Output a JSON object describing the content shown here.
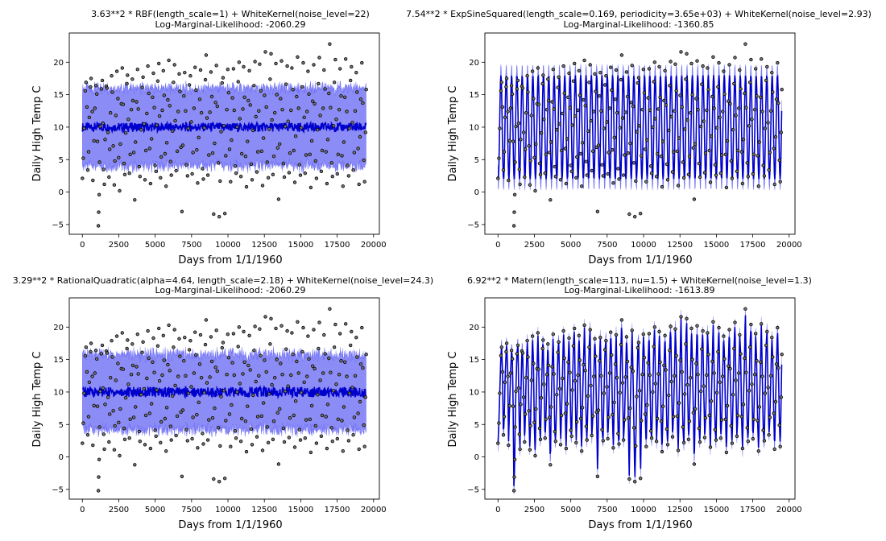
{
  "figure": {
    "background": "#ffffff"
  },
  "chart_data": [
    {
      "type": "line",
      "title_line1": "3.63**2 * RBF(length_scale=1) + WhiteKernel(noise_level=22)",
      "title_line2": "Log-Marginal-Likelihood: -2060.29",
      "xlabel": "Days from 1/1/1960",
      "ylabel": "Daily High Temp C",
      "xlim": [
        -900,
        20400
      ],
      "ylim": [
        -6.5,
        24.5
      ],
      "xticks": [
        0,
        2500,
        5000,
        7500,
        10000,
        12500,
        15000,
        17500,
        20000
      ],
      "yticks": [
        -5,
        0,
        5,
        10,
        15,
        20
      ],
      "grid": false,
      "fit": {
        "model": "flat",
        "mean": 10,
        "mean_noise": 0.7,
        "band_halfwidth": 6,
        "band_noise": 0.1
      },
      "colors": {
        "mean": "#0000cc",
        "band": "#0000ee",
        "points": "#000000"
      },
      "series": [
        {
          "role": "observed",
          "style": "scatter"
        },
        {
          "role": "mean",
          "style": "line"
        },
        {
          "role": "band",
          "style": "area"
        }
      ]
    },
    {
      "type": "line",
      "title_line1": "7.54**2 * ExpSineSquared(length_scale=0.169, periodicity=3.65e+03) + WhiteKernel(noise_level=2.93)",
      "title_line2": "Log-Marginal-Likelihood: -1360.85",
      "xlabel": "Days from 1/1/1960",
      "ylabel": "Daily High Temp C",
      "xlim": [
        -900,
        20400
      ],
      "ylim": [
        -6.5,
        24.5
      ],
      "xticks": [
        0,
        2500,
        5000,
        7500,
        10000,
        12500,
        15000,
        17500,
        20000
      ],
      "yticks": [
        -5,
        0,
        5,
        10,
        15,
        20
      ],
      "grid": false,
      "fit": {
        "model": "seasonal",
        "mean": 10,
        "amplitude": 8,
        "period_days": 365.25,
        "band_halfwidth": 1.7
      },
      "colors": {
        "mean": "#0000cc",
        "band": "#0000ee",
        "points": "#000000"
      },
      "series": [
        {
          "role": "observed",
          "style": "scatter"
        },
        {
          "role": "mean",
          "style": "line"
        },
        {
          "role": "band",
          "style": "area"
        }
      ]
    },
    {
      "type": "line",
      "title_line1": "3.29**2 * RationalQuadratic(alpha=4.64, length_scale=2.18) + WhiteKernel(noise_level=24.3)",
      "title_line2": "Log-Marginal-Likelihood: -2060.29",
      "xlabel": "Days from 1/1/1960",
      "ylabel": "Daily High Temp C",
      "xlim": [
        -900,
        20400
      ],
      "ylim": [
        -6.5,
        24.5
      ],
      "xticks": [
        0,
        2500,
        5000,
        7500,
        10000,
        12500,
        15000,
        17500,
        20000
      ],
      "yticks": [
        -5,
        0,
        5,
        10,
        15,
        20
      ],
      "grid": false,
      "fit": {
        "model": "flat",
        "mean": 10,
        "mean_noise": 0.8,
        "band_halfwidth": 5.8,
        "band_noise": 0.1
      },
      "colors": {
        "mean": "#0000cc",
        "band": "#0000ee",
        "points": "#000000"
      },
      "series": [
        {
          "role": "observed",
          "style": "scatter"
        },
        {
          "role": "mean",
          "style": "line"
        },
        {
          "role": "band",
          "style": "area"
        }
      ]
    },
    {
      "type": "line",
      "title_line1": "6.92**2 * Matern(length_scale=113, nu=1.5) + WhiteKernel(noise_level=1.3)",
      "title_line2": "Log-Marginal-Likelihood: -1613.89",
      "xlabel": "Days from 1/1/1960",
      "ylabel": "Daily High Temp C",
      "xlim": [
        -900,
        20400
      ],
      "ylim": [
        -6.5,
        24.5
      ],
      "xticks": [
        0,
        2500,
        5000,
        7500,
        10000,
        12500,
        15000,
        17500,
        20000
      ],
      "yticks": [
        -5,
        0,
        5,
        10,
        15,
        20
      ],
      "grid": false,
      "fit": {
        "model": "follow",
        "band_halfwidth": 1.3
      },
      "colors": {
        "mean": "#0000cc",
        "band": "#0000ee",
        "points": "#000000"
      },
      "series": [
        {
          "role": "observed",
          "style": "scatter"
        },
        {
          "role": "mean",
          "style": "line"
        },
        {
          "role": "band",
          "style": "area"
        }
      ]
    }
  ],
  "observations": {
    "description_units": "x: days from 1/1/1960, y: daily high temp C",
    "points": [
      [
        0,
        2.1
      ],
      [
        60,
        5.2
      ],
      [
        120,
        9.8
      ],
      [
        200,
        15.6
      ],
      [
        250,
        16.9
      ],
      [
        310,
        13.1
      ],
      [
        370,
        3.4
      ],
      [
        430,
        6.2
      ],
      [
        480,
        11.5
      ],
      [
        560,
        16.2
      ],
      [
        600,
        17.5
      ],
      [
        680,
        12.4
      ],
      [
        720,
        1.8
      ],
      [
        800,
        7.9
      ],
      [
        860,
        12.9
      ],
      [
        930,
        16.4
      ],
      [
        990,
        15.1
      ],
      [
        1040,
        7.8
      ],
      [
        1095,
        -5.2
      ],
      [
        1120,
        -3.1
      ],
      [
        1150,
        -0.4
      ],
      [
        1180,
        4.6
      ],
      [
        1230,
        10.1
      ],
      [
        1300,
        15.9
      ],
      [
        1370,
        17.2
      ],
      [
        1420,
        10.6
      ],
      [
        1470,
        3.5
      ],
      [
        1510,
        1.2
      ],
      [
        1560,
        8.1
      ],
      [
        1640,
        16.3
      ],
      [
        1700,
        16.0
      ],
      [
        1760,
        9.2
      ],
      [
        1830,
        2.3
      ],
      [
        1880,
        6.6
      ],
      [
        1930,
        12.2
      ],
      [
        2010,
        17.9
      ],
      [
        2060,
        15.4
      ],
      [
        2120,
        7.1
      ],
      [
        2190,
        1.1
      ],
      [
        2230,
        4.8
      ],
      [
        2300,
        11.8
      ],
      [
        2370,
        18.6
      ],
      [
        2440,
        14.4
      ],
      [
        2490,
        5.3
      ],
      [
        2560,
        0.2
      ],
      [
        2610,
        7.4
      ],
      [
        2680,
        13.6
      ],
      [
        2740,
        19.1
      ],
      [
        2800,
        13.5
      ],
      [
        2860,
        4.4
      ],
      [
        2920,
        2.7
      ],
      [
        2980,
        9.1
      ],
      [
        3060,
        16.7
      ],
      [
        3100,
        18.0
      ],
      [
        3160,
        11.2
      ],
      [
        3230,
        2.9
      ],
      [
        3290,
        5.8
      ],
      [
        3360,
        12.7
      ],
      [
        3430,
        17.4
      ],
      [
        3470,
        14.1
      ],
      [
        3530,
        6.1
      ],
      [
        3600,
        -1.2
      ],
      [
        3650,
        7.7
      ],
      [
        3720,
        13.9
      ],
      [
        3790,
        18.9
      ],
      [
        3840,
        12.8
      ],
      [
        3900,
        3.9
      ],
      [
        3960,
        2.4
      ],
      [
        4040,
        9.6
      ],
      [
        4110,
        16.1
      ],
      [
        4170,
        17.7
      ],
      [
        4240,
        10.5
      ],
      [
        4300,
        1.9
      ],
      [
        4360,
        6.4
      ],
      [
        4430,
        12.1
      ],
      [
        4500,
        19.4
      ],
      [
        4560,
        15.2
      ],
      [
        4620,
        6.7
      ],
      [
        4680,
        1.3
      ],
      [
        4750,
        8.2
      ],
      [
        4820,
        14.6
      ],
      [
        4880,
        18.3
      ],
      [
        4940,
        13.0
      ],
      [
        5000,
        4.1
      ],
      [
        5060,
        3.2
      ],
      [
        5110,
        10.3
      ],
      [
        5180,
        17.1
      ],
      [
        5250,
        19.8
      ],
      [
        5300,
        11.7
      ],
      [
        5370,
        2.2
      ],
      [
        5420,
        5.4
      ],
      [
        5490,
        12.6
      ],
      [
        5560,
        18.7
      ],
      [
        5620,
        14.9
      ],
      [
        5680,
        5.9
      ],
      [
        5750,
        0.9
      ],
      [
        5800,
        7.6
      ],
      [
        5870,
        14.2
      ],
      [
        5940,
        20.3
      ],
      [
        6000,
        13.3
      ],
      [
        6060,
        4.7
      ],
      [
        6110,
        2.6
      ],
      [
        6190,
        9.4
      ],
      [
        6260,
        16.9
      ],
      [
        6330,
        19.6
      ],
      [
        6380,
        11.0
      ],
      [
        6440,
        3.3
      ],
      [
        6520,
        6.3
      ],
      [
        6580,
        12.4
      ],
      [
        6650,
        18.2
      ],
      [
        6700,
        15.5
      ],
      [
        6770,
        6.9
      ],
      [
        6840,
        -3.0
      ],
      [
        6900,
        7.2
      ],
      [
        6970,
        14.8
      ],
      [
        7030,
        18.4
      ],
      [
        7090,
        12.5
      ],
      [
        7150,
        4.2
      ],
      [
        7220,
        2.5
      ],
      [
        7280,
        9.8
      ],
      [
        7350,
        16.5
      ],
      [
        7420,
        17.9
      ],
      [
        7480,
        10.8
      ],
      [
        7540,
        2.8
      ],
      [
        7600,
        6.1
      ],
      [
        7670,
        12.9
      ],
      [
        7740,
        19.2
      ],
      [
        7800,
        15.7
      ],
      [
        7860,
        6.5
      ],
      [
        7920,
        1.4
      ],
      [
        7990,
        8.4
      ],
      [
        8060,
        14.3
      ],
      [
        8120,
        18.8
      ],
      [
        8180,
        12.2
      ],
      [
        8250,
        3.6
      ],
      [
        8310,
        2.0
      ],
      [
        8380,
        9.9
      ],
      [
        8450,
        17.3
      ],
      [
        8500,
        21.1
      ],
      [
        8560,
        11.4
      ],
      [
        8620,
        2.6
      ],
      [
        8690,
        5.7
      ],
      [
        8760,
        12.3
      ],
      [
        8830,
        18.5
      ],
      [
        8890,
        14.7
      ],
      [
        8950,
        6.0
      ],
      [
        9020,
        -3.4
      ],
      [
        9080,
        7.5
      ],
      [
        9150,
        13.8
      ],
      [
        9210,
        19.5
      ],
      [
        9270,
        13.2
      ],
      [
        9340,
        4.5
      ],
      [
        9400,
        -3.8
      ],
      [
        9460,
        1.7
      ],
      [
        9530,
        9.3
      ],
      [
        9600,
        16.8
      ],
      [
        9660,
        17.6
      ],
      [
        9720,
        10.2
      ],
      [
        9790,
        -3.3
      ],
      [
        9850,
        5.6
      ],
      [
        9920,
        12.7
      ],
      [
        9990,
        18.9
      ],
      [
        10050,
        15.3
      ],
      [
        10110,
        6.6
      ],
      [
        10180,
        1.6
      ],
      [
        10240,
        8.0
      ],
      [
        10310,
        14.5
      ],
      [
        10380,
        19.0
      ],
      [
        10430,
        12.6
      ],
      [
        10500,
        4.0
      ],
      [
        10560,
        2.9
      ],
      [
        10630,
        10.0
      ],
      [
        10700,
        17.0
      ],
      [
        10760,
        20.0
      ],
      [
        10820,
        11.3
      ],
      [
        10890,
        2.4
      ],
      [
        10950,
        5.9
      ],
      [
        11020,
        12.8
      ],
      [
        11080,
        19.3
      ],
      [
        11140,
        14.6
      ],
      [
        11210,
        5.5
      ],
      [
        11270,
        0.8
      ],
      [
        11340,
        7.8
      ],
      [
        11400,
        14.1
      ],
      [
        11470,
        18.7
      ],
      [
        11530,
        13.4
      ],
      [
        11600,
        4.3
      ],
      [
        11660,
        1.9
      ],
      [
        11730,
        9.5
      ],
      [
        11790,
        16.4
      ],
      [
        11860,
        20.1
      ],
      [
        11920,
        11.6
      ],
      [
        11990,
        3.1
      ],
      [
        12050,
        6.2
      ],
      [
        12120,
        12.5
      ],
      [
        12180,
        19.7
      ],
      [
        12250,
        15.6
      ],
      [
        12310,
        6.3
      ],
      [
        12380,
        1.0
      ],
      [
        12440,
        8.3
      ],
      [
        12510,
        14.9
      ],
      [
        12570,
        21.6
      ],
      [
        12640,
        13.1
      ],
      [
        12700,
        4.6
      ],
      [
        12770,
        2.2
      ],
      [
        12830,
        9.7
      ],
      [
        12900,
        17.4
      ],
      [
        12960,
        21.3
      ],
      [
        13020,
        11.1
      ],
      [
        13090,
        2.7
      ],
      [
        13150,
        5.5
      ],
      [
        13220,
        12.2
      ],
      [
        13290,
        19.8
      ],
      [
        13350,
        15.0
      ],
      [
        13420,
        6.8
      ],
      [
        13480,
        -1.1
      ],
      [
        13550,
        7.4
      ],
      [
        13610,
        14.4
      ],
      [
        13680,
        20.2
      ],
      [
        13740,
        12.7
      ],
      [
        13810,
        4.4
      ],
      [
        13870,
        2.3
      ],
      [
        13940,
        10.1
      ],
      [
        14000,
        16.6
      ],
      [
        14070,
        19.4
      ],
      [
        14130,
        10.9
      ],
      [
        14200,
        3.0
      ],
      [
        14260,
        6.0
      ],
      [
        14330,
        12.6
      ],
      [
        14390,
        19.1
      ],
      [
        14460,
        15.8
      ],
      [
        14520,
        6.4
      ],
      [
        14590,
        1.5
      ],
      [
        14650,
        8.6
      ],
      [
        14720,
        14.7
      ],
      [
        14780,
        20.8
      ],
      [
        14850,
        12.9
      ],
      [
        14910,
        4.2
      ],
      [
        14980,
        2.6
      ],
      [
        15040,
        9.9
      ],
      [
        15110,
        16.2
      ],
      [
        15170,
        19.9
      ],
      [
        15240,
        11.5
      ],
      [
        15300,
        2.9
      ],
      [
        15370,
        5.7
      ],
      [
        15430,
        12.4
      ],
      [
        15500,
        18.6
      ],
      [
        15560,
        15.1
      ],
      [
        15630,
        5.8
      ],
      [
        15690,
        0.7
      ],
      [
        15760,
        7.9
      ],
      [
        15820,
        14.0
      ],
      [
        15890,
        19.6
      ],
      [
        15950,
        13.6
      ],
      [
        16020,
        4.8
      ],
      [
        16080,
        2.1
      ],
      [
        16150,
        9.6
      ],
      [
        16210,
        16.7
      ],
      [
        16280,
        20.7
      ],
      [
        16340,
        11.8
      ],
      [
        16410,
        3.2
      ],
      [
        16470,
        6.4
      ],
      [
        16540,
        12.9
      ],
      [
        16600,
        18.8
      ],
      [
        16670,
        15.9
      ],
      [
        16730,
        6.2
      ],
      [
        16800,
        1.3
      ],
      [
        16860,
        8.1
      ],
      [
        16930,
        15.2
      ],
      [
        16990,
        22.8
      ],
      [
        17050,
        13.0
      ],
      [
        17120,
        4.5
      ],
      [
        17180,
        2.4
      ],
      [
        17250,
        10.2
      ],
      [
        17310,
        16.9
      ],
      [
        17380,
        20.4
      ],
      [
        17440,
        11.2
      ],
      [
        17510,
        2.8
      ],
      [
        17570,
        5.8
      ],
      [
        17640,
        12.7
      ],
      [
        17700,
        19.0
      ],
      [
        17770,
        14.8
      ],
      [
        17830,
        5.6
      ],
      [
        17900,
        0.9
      ],
      [
        17960,
        7.7
      ],
      [
        18030,
        14.6
      ],
      [
        18090,
        20.5
      ],
      [
        18160,
        12.4
      ],
      [
        18220,
        4.1
      ],
      [
        18290,
        2.5
      ],
      [
        18350,
        9.8
      ],
      [
        18420,
        17.2
      ],
      [
        18480,
        19.3
      ],
      [
        18550,
        10.7
      ],
      [
        18610,
        3.4
      ],
      [
        18680,
        6.1
      ],
      [
        18740,
        12.5
      ],
      [
        18810,
        18.4
      ],
      [
        18870,
        15.4
      ],
      [
        18940,
        6.7
      ],
      [
        19000,
        1.2
      ],
      [
        19070,
        8.5
      ],
      [
        19130,
        14.3
      ],
      [
        19200,
        19.9
      ],
      [
        19260,
        13.7
      ],
      [
        19330,
        4.9
      ],
      [
        19390,
        1.6
      ],
      [
        19450,
        9.2
      ],
      [
        19500,
        15.8
      ]
    ]
  }
}
